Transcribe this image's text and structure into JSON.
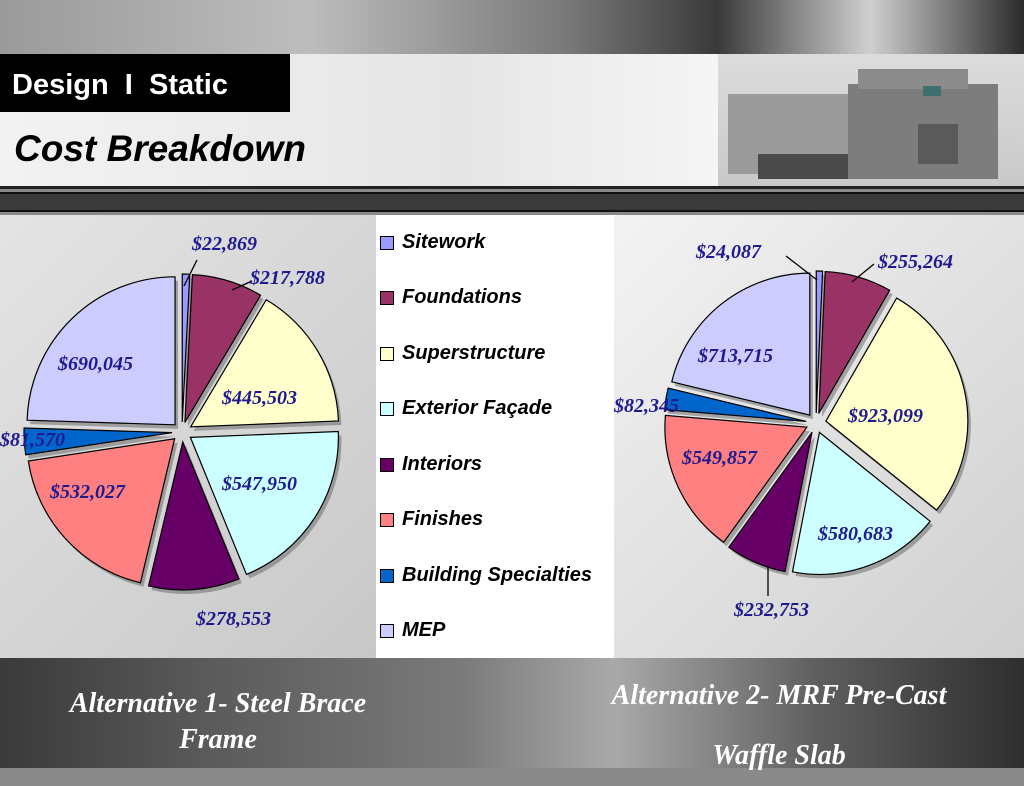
{
  "header": {
    "title": "Design  I  Static",
    "subtitle": "Cost Breakdown"
  },
  "legend": [
    {
      "label": "Sitework",
      "color": "#9999ff"
    },
    {
      "label": "Foundations",
      "color": "#993366"
    },
    {
      "label": "Superstructure",
      "color": "#ffffcc"
    },
    {
      "label": "Exterior Façade",
      "color": "#ccffff"
    },
    {
      "label": "Interiors",
      "color": "#660066"
    },
    {
      "label": "Finishes",
      "color": "#ff8080"
    },
    {
      "label": "Building Specialties",
      "color": "#0066cc"
    },
    {
      "label": "MEP",
      "color": "#ccccff"
    }
  ],
  "chart_data": [
    {
      "type": "pie",
      "title": "Alternative 1- Steel Brace Frame",
      "categories": [
        "Sitework",
        "Foundations",
        "Superstructure",
        "Exterior Façade",
        "Interiors",
        "Finishes",
        "Building Specialties",
        "MEP"
      ],
      "values": [
        22869,
        217788,
        445503,
        547950,
        278553,
        532027,
        81570,
        690045
      ],
      "labels": [
        "$22,869",
        "$217,788",
        "$445,503",
        "$547,950",
        "$278,553",
        "$532,027",
        "$81,570",
        "$690,045"
      ],
      "colors": [
        "#9999ff",
        "#993366",
        "#ffffcc",
        "#ccffff",
        "#660066",
        "#ff8080",
        "#0066cc",
        "#ccccff"
      ]
    },
    {
      "type": "pie",
      "title": "Alternative 2- MRF Pre-Cast Waffle Slab",
      "categories": [
        "Sitework",
        "Foundations",
        "Superstructure",
        "Exterior Façade",
        "Interiors",
        "Finishes",
        "Building Specialties",
        "MEP"
      ],
      "values": [
        24087,
        255264,
        923099,
        580683,
        232753,
        549857,
        82345,
        713715
      ],
      "labels": [
        "$24,087",
        "$255,264",
        "$923,099",
        "$580,683",
        "$232,753",
        "$549,857",
        "$82,345",
        "$713,715"
      ],
      "colors": [
        "#9999ff",
        "#993366",
        "#ffffcc",
        "#ccffff",
        "#660066",
        "#ff8080",
        "#0066cc",
        "#ccccff"
      ]
    }
  ],
  "captions": {
    "alt1_line1": "Alternative 1- Steel Brace",
    "alt1_line2": "Frame",
    "alt2_line1": "Alternative 2- MRF Pre-Cast",
    "alt2_line2": "Waffle Slab"
  }
}
